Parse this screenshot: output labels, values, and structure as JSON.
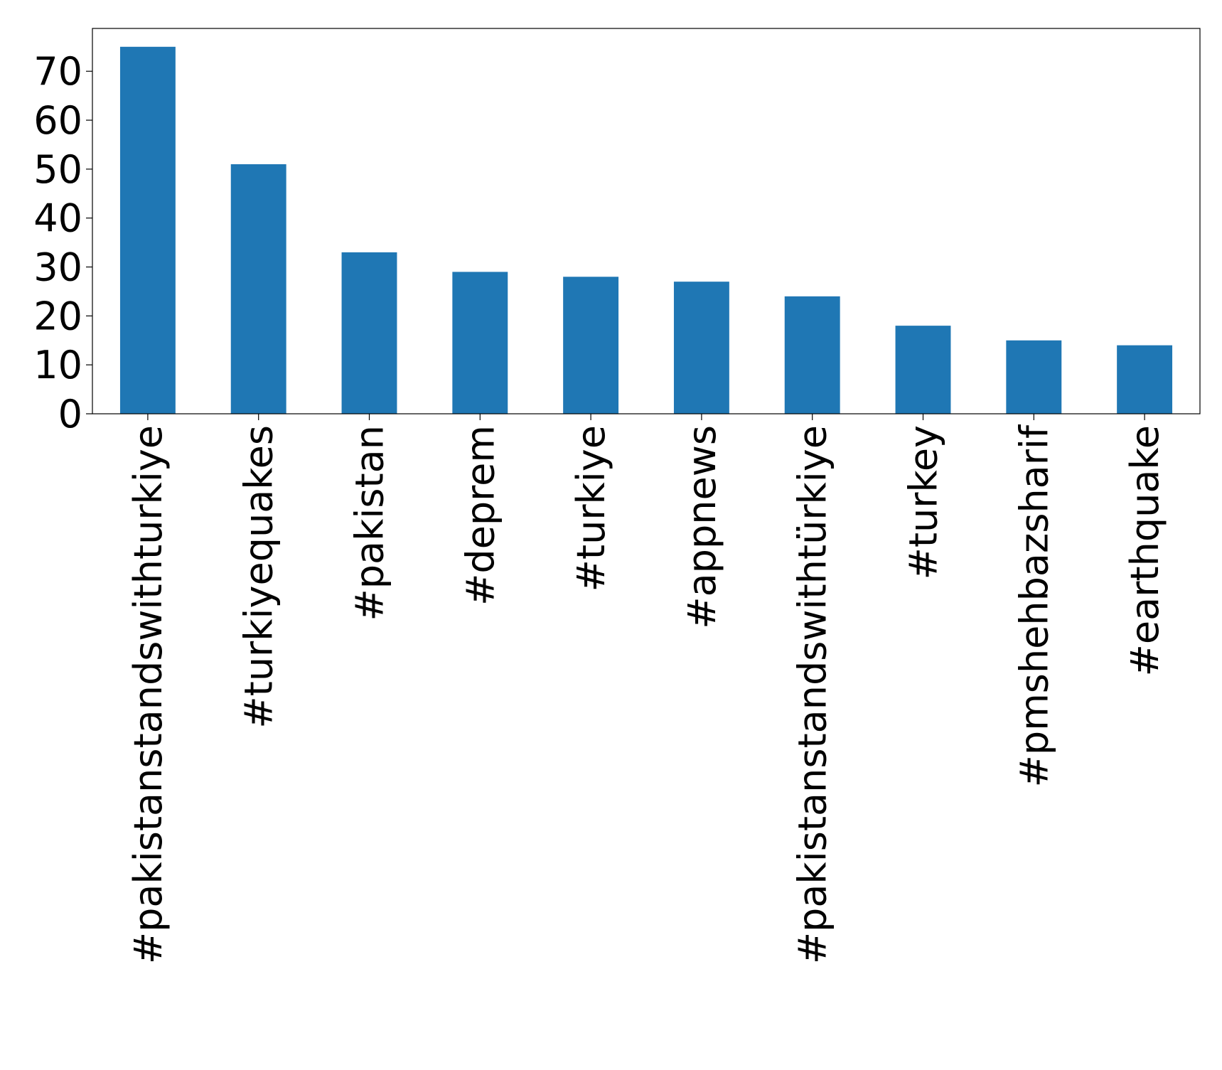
{
  "chart_data": {
    "type": "bar",
    "categories": [
      "#pakistanstandswithturkiye",
      "#turkiyequakes",
      "#pakistan",
      "#deprem",
      "#turkiye",
      "#appnews",
      "#pakistanstandswithtürkiye",
      "#turkey",
      "#pmshehbazsharif",
      "#earthquake"
    ],
    "values": [
      75,
      51,
      33,
      29,
      28,
      27,
      24,
      18,
      15,
      14
    ],
    "color": "#1f77b4",
    "ylim": [
      0,
      78.75
    ],
    "yticks": [
      0,
      10,
      20,
      30,
      40,
      50,
      60,
      70
    ],
    "grid": false
  }
}
